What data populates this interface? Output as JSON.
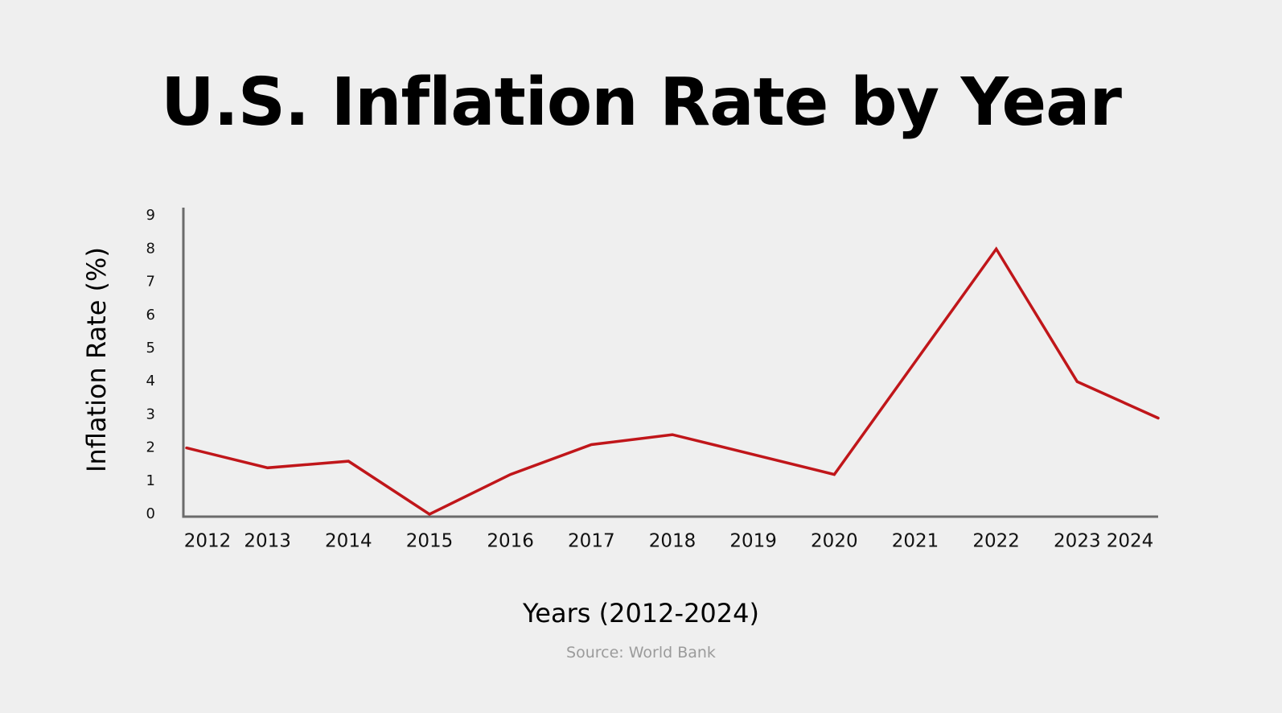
{
  "title": "U.S. Inflation Rate by Year",
  "source": "Source: World Bank",
  "colors": {
    "background": "#efefef",
    "line": "#c0161a",
    "axis": "#6b6b6b"
  },
  "chart_data": {
    "type": "line",
    "title": "U.S. Inflation Rate by Year",
    "xlabel": "Years (2012-2024)",
    "ylabel": "Inflation Rate (%)",
    "categories": [
      "2012",
      "2013",
      "2014",
      "2015",
      "2016",
      "2017",
      "2018",
      "2019",
      "2020",
      "2021",
      "2022",
      "2023",
      "2024"
    ],
    "series": [
      {
        "values": [
          2.0,
          1.4,
          1.6,
          0.0,
          1.2,
          2.1,
          2.4,
          1.8,
          1.2,
          4.6,
          8.0,
          4.0,
          2.9
        ]
      }
    ],
    "yticks": [
      "0",
      "1",
      "2",
      "3",
      "4",
      "5",
      "6",
      "7",
      "8",
      "9"
    ],
    "ylim": [
      0,
      9
    ],
    "grid": false,
    "legend": "none"
  }
}
